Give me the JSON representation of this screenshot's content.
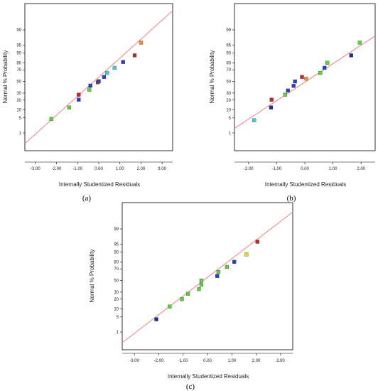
{
  "colors": {
    "fit_line": "#f08080",
    "red": "#c0282b",
    "orange": "#e8963a",
    "yellow": "#d9d93c",
    "green": "#5ed03c",
    "cyan": "#3fd0d0",
    "blue": "#2b3ec9",
    "navy": "#1d2c9e"
  },
  "chart_data": [
    {
      "type": "scatter",
      "panel_label": "(a)",
      "xlabel": "Internally Studentized Residuals",
      "ylabel": "Normal % Probability",
      "xlim": [
        -3.5,
        3.5
      ],
      "x_ticks": [
        "-3.00",
        "-2.00",
        "-1.00",
        "0.00",
        "1.00",
        "2.00",
        "3.00"
      ],
      "y_ticks": [
        "1",
        "5",
        "10",
        "20",
        "30",
        "50",
        "70",
        "80",
        "90",
        "95",
        "99"
      ],
      "grid": false,
      "fit_line": {
        "x": [
          -3.5,
          3.5
        ],
        "y": [
          0.25,
          99.93
        ]
      },
      "points": [
        {
          "x": -2.25,
          "y": 4.5,
          "color": "green"
        },
        {
          "x": -1.4,
          "y": 12.0,
          "color": "green"
        },
        {
          "x": -0.95,
          "y": 20.5,
          "color": "blue"
        },
        {
          "x": -0.95,
          "y": 27.5,
          "color": "red"
        },
        {
          "x": -0.45,
          "y": 35.5,
          "color": "green"
        },
        {
          "x": -0.4,
          "y": 42.5,
          "color": "blue"
        },
        {
          "x": -0.05,
          "y": 48.5,
          "color": "red"
        },
        {
          "x": 0.0,
          "y": 50.5,
          "color": "blue"
        },
        {
          "x": 0.25,
          "y": 58.0,
          "color": "blue"
        },
        {
          "x": 0.4,
          "y": 65.0,
          "color": "cyan"
        },
        {
          "x": 0.75,
          "y": 73.0,
          "color": "cyan"
        },
        {
          "x": 1.15,
          "y": 81.0,
          "color": "blue"
        },
        {
          "x": 1.7,
          "y": 88.0,
          "color": "red"
        },
        {
          "x": 2.0,
          "y": 96.0,
          "color": "orange"
        }
      ]
    },
    {
      "type": "scatter",
      "panel_label": "(b)",
      "xlabel": "Internally Studentized Residuals",
      "ylabel": "Normal % Probability",
      "xlim": [
        -2.5,
        2.5
      ],
      "x_ticks": [
        "-2.00",
        "-1.00",
        "0.00",
        "1.00",
        "2.00"
      ],
      "y_ticks": [
        "1",
        "5",
        "10",
        "20",
        "30",
        "50",
        "70",
        "80",
        "90",
        "95",
        "99"
      ],
      "grid": false,
      "fit_line": {
        "x": [
          -2.5,
          2.5
        ],
        "y": [
          1.7,
          98.0
        ]
      },
      "points": [
        {
          "x": -1.8,
          "y": 4.0,
          "color": "cyan"
        },
        {
          "x": -1.2,
          "y": 12.0,
          "color": "navy"
        },
        {
          "x": -1.18,
          "y": 20.5,
          "color": "red"
        },
        {
          "x": -0.7,
          "y": 27.5,
          "color": "green"
        },
        {
          "x": -0.6,
          "y": 34.0,
          "color": "blue"
        },
        {
          "x": -0.4,
          "y": 42.0,
          "color": "blue"
        },
        {
          "x": -0.35,
          "y": 50.0,
          "color": "blue"
        },
        {
          "x": -0.1,
          "y": 58.0,
          "color": "red"
        },
        {
          "x": 0.05,
          "y": 55.0,
          "color": "orange"
        },
        {
          "x": 0.55,
          "y": 65.0,
          "color": "green"
        },
        {
          "x": 0.7,
          "y": 73.0,
          "color": "blue"
        },
        {
          "x": 0.8,
          "y": 80.0,
          "color": "green"
        },
        {
          "x": 1.65,
          "y": 88.0,
          "color": "navy"
        },
        {
          "x": 1.95,
          "y": 96.0,
          "color": "green"
        }
      ]
    },
    {
      "type": "scatter",
      "panel_label": "(c)",
      "xlabel": "Internally Studentized Residuals",
      "ylabel": "Normal % Probability",
      "xlim": [
        -3.5,
        3.5
      ],
      "x_ticks": [
        "-3.00",
        "-2.00",
        "-1.00",
        "0.00",
        "1.00",
        "2.00",
        "3.00"
      ],
      "y_ticks": [
        "1",
        "5",
        "10",
        "20",
        "30",
        "50",
        "70",
        "80",
        "90",
        "95",
        "99"
      ],
      "grid": false,
      "fit_line": {
        "x": [
          -3.5,
          3.5
        ],
        "y": [
          0.25,
          99.9
        ]
      },
      "points": [
        {
          "x": -2.1,
          "y": 4.0,
          "color": "navy"
        },
        {
          "x": -1.55,
          "y": 12.0,
          "color": "green"
        },
        {
          "x": -1.05,
          "y": 20.0,
          "color": "green"
        },
        {
          "x": -0.8,
          "y": 27.5,
          "color": "green"
        },
        {
          "x": -0.35,
          "y": 35.0,
          "color": "green"
        },
        {
          "x": -0.25,
          "y": 42.5,
          "color": "green"
        },
        {
          "x": -0.25,
          "y": 50.0,
          "color": "green"
        },
        {
          "x": 0.4,
          "y": 58.0,
          "color": "blue"
        },
        {
          "x": 0.45,
          "y": 65.0,
          "color": "green"
        },
        {
          "x": 0.8,
          "y": 73.0,
          "color": "green"
        },
        {
          "x": 1.1,
          "y": 80.0,
          "color": "blue"
        },
        {
          "x": 1.6,
          "y": 88.0,
          "color": "yellow"
        },
        {
          "x": 2.05,
          "y": 96.0,
          "color": "red"
        }
      ]
    }
  ]
}
